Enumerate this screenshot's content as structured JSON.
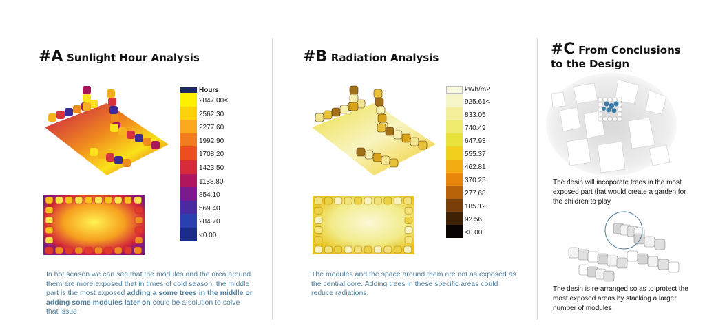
{
  "panel_a": {
    "tag": "#A",
    "title": "Sunlight Hour Analysis",
    "legend_unit": "Hours",
    "legend_values": [
      "2847.00<",
      "2562.30",
      "2277.60",
      "1992.90",
      "1708.20",
      "1423.50",
      "1138.80",
      "854.10",
      "569.40",
      "284.70",
      "<0.00"
    ],
    "legend_colors": [
      "#fff200",
      "#fdd20a",
      "#fba81c",
      "#f47c20",
      "#ec4e20",
      "#d72a3b",
      "#b0165e",
      "#7a1a8c",
      "#4a2aa0",
      "#2a3fb0",
      "#1a2c8a"
    ],
    "desc_1": "In hot season we can see that the modules and the area around them are more exposed that in times of cold season, the middle part is the most exposed ",
    "desc_bold": "adding a some trees in the middle or adding some modules later on",
    "desc_2": " could be a solution to solve that issue."
  },
  "panel_b": {
    "tag": "#B",
    "title": "Radiation Analysis",
    "legend_unit": "kWh/m2",
    "legend_values": [
      "925.61<",
      "833.05",
      "740.49",
      "647.93",
      "555.37",
      "462.81",
      "370.25",
      "277.68",
      "185.12",
      "92.56",
      "<0.00"
    ],
    "legend_colors": [
      "#f7f6c8",
      "#f3ef9c",
      "#eeea6e",
      "#e8e23c",
      "#f0d01c",
      "#f3ac12",
      "#e8860c",
      "#b8620a",
      "#7a3e08",
      "#3e2005",
      "#0a0502"
    ],
    "desc": "The modules and the space around them are not as exposed as the central core. Adding trees in these specific areas could reduce radiations."
  },
  "panel_c": {
    "tag": "#C",
    "title_line1": "From Conclusions",
    "title_line2": "to the Design",
    "desc_1": "The desin will incoporate trees in the most exposed part that would create a garden for the children to play",
    "desc_2": "The desin is re-arranged so as to protect the most exposed areas by stacking a larger number of modules"
  }
}
